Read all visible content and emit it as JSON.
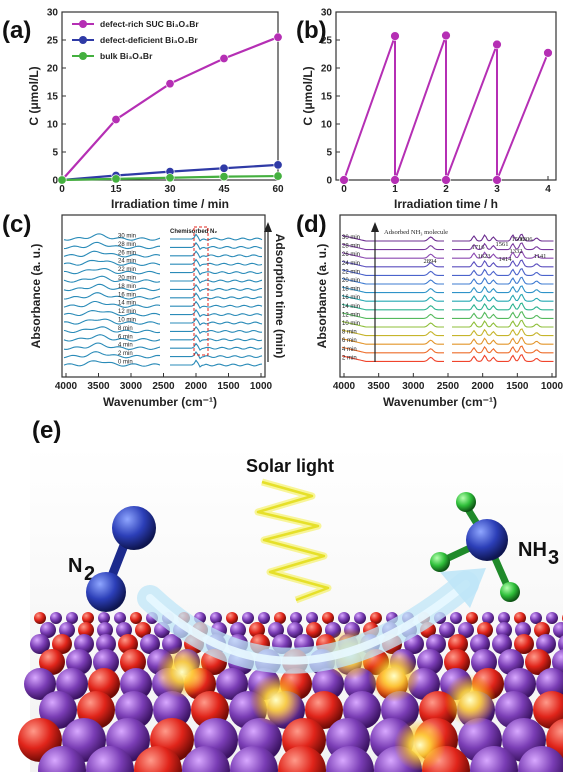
{
  "panel_labels": {
    "a": "(a)",
    "b": "(b)",
    "c": "(c)",
    "d": "(d)",
    "e": "(e)"
  },
  "colors": {
    "purple": "#b52fb4",
    "blue": "#2f3aa6",
    "green": "#44b03f",
    "teal": "#2a8bb8",
    "lead": "#333333"
  },
  "chart_data": [
    {
      "id": "a",
      "type": "line",
      "x": [
        0,
        15,
        30,
        45,
        60
      ],
      "xlim": [
        0,
        60
      ],
      "ylim": [
        0,
        30
      ],
      "xticks": [
        "0",
        "15",
        "30",
        "45",
        "60"
      ],
      "yticks": [
        "0",
        "5",
        "10",
        "15",
        "20",
        "25",
        "30"
      ],
      "xlabel": "Irradiation time / min",
      "ylabel": "C (μmol/L)",
      "legend_position": "top-left",
      "series": [
        {
          "name": "defect-rich SUC Bi₃O₄Br",
          "color": "#b52fb4",
          "values": [
            0,
            10.8,
            17.2,
            21.7,
            25.5
          ]
        },
        {
          "name": "defect-deficient Bi₃O₄Br",
          "color": "#2f3aa6",
          "values": [
            0,
            0.8,
            1.5,
            2.1,
            2.7
          ]
        },
        {
          "name": "bulk Bi₃O₄Br",
          "color": "#44b03f",
          "values": [
            0,
            0.2,
            0.4,
            0.6,
            0.7
          ]
        }
      ]
    },
    {
      "id": "b",
      "type": "line",
      "xlim": [
        0,
        4
      ],
      "ylim": [
        0,
        30
      ],
      "xticks": [
        "0",
        "1",
        "2",
        "3",
        "4"
      ],
      "yticks": [
        "0",
        "5",
        "10",
        "15",
        "20",
        "25",
        "30"
      ],
      "xlabel": "Irradiation time / h",
      "ylabel": "C (μmol/L)",
      "series": [
        {
          "color": "#b52fb4",
          "points": [
            [
              0,
              0
            ],
            [
              1,
              25.7
            ],
            [
              1,
              0
            ],
            [
              2,
              25.8
            ],
            [
              2,
              0
            ],
            [
              3,
              24.2
            ],
            [
              3,
              0
            ],
            [
              4,
              22.7
            ]
          ]
        }
      ]
    },
    {
      "id": "c",
      "type": "line",
      "xlabel": "Wavenumber (cm⁻¹)",
      "ylabel": "Absorbance (a. u.)",
      "right_label": "Adsorption time (min)",
      "xticks": [
        "4000",
        "3500",
        "3000",
        "2500",
        "2000",
        "1500",
        "1000"
      ],
      "annotation": "Chemisorbed N₂",
      "curve_labels": [
        "30 min",
        "28 min",
        "26 min",
        "24 min",
        "22 min",
        "20 min",
        "18 min",
        "16 min",
        "14 min",
        "12 min",
        "10 min",
        "8 min",
        "6 min",
        "4 min",
        "2 min",
        "0 min"
      ]
    },
    {
      "id": "d",
      "type": "line",
      "xlabel": "Wavenumber (cm⁻¹)",
      "ylabel": "Absorbance (a. u.)",
      "xticks": [
        "4000",
        "3500",
        "3000",
        "2500",
        "2000",
        "1500",
        "1000"
      ],
      "annotation": "Adsorbed NH₃ molecule",
      "peaks": [
        "2894",
        "1716",
        "1561",
        "1506",
        "1623",
        "1414",
        "1332",
        "1306",
        "1141"
      ],
      "curve_labels": [
        "30 min",
        "28 min",
        "26 min",
        "24 min",
        "22 min",
        "20 min",
        "18 min",
        "16 min",
        "14 min",
        "12 min",
        "10 min",
        "8 min",
        "6 min",
        "4 min",
        "2 min"
      ]
    }
  ],
  "scheme": {
    "light_label": "Solar light",
    "reactant": "N",
    "reactant_sub": "2",
    "product": "NH",
    "product_sub": "3"
  }
}
